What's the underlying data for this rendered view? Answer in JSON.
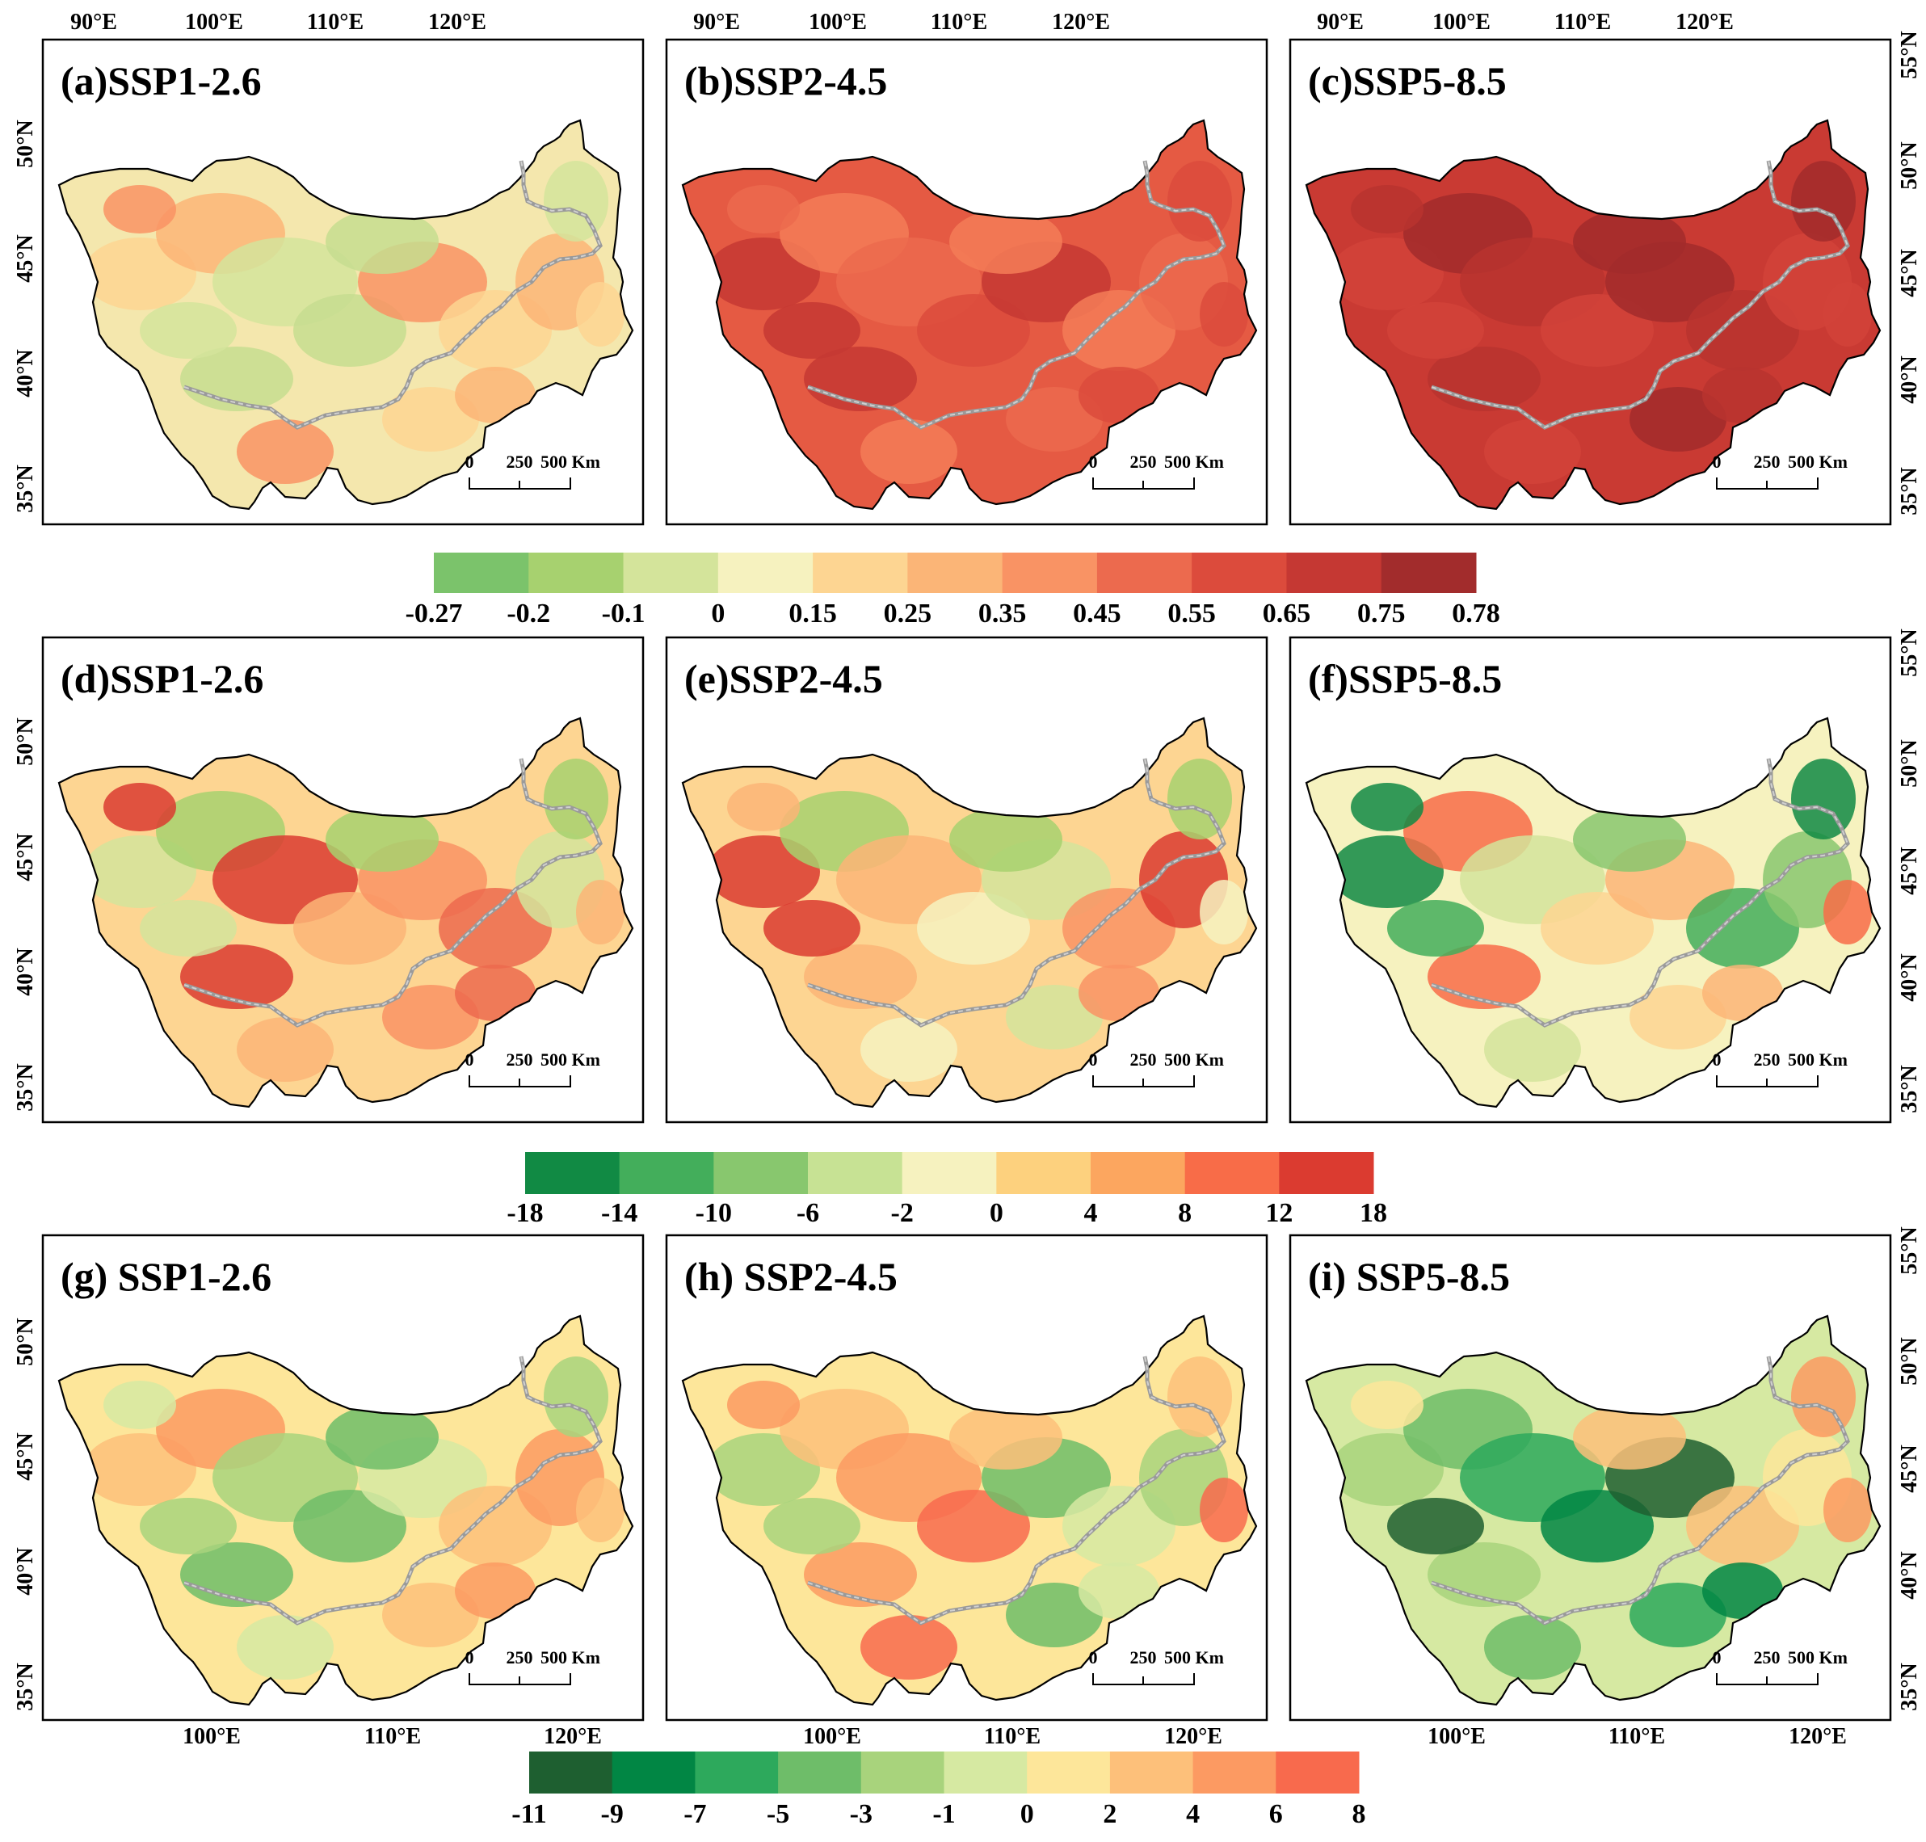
{
  "figure": {
    "panels": [
      {
        "id": "a",
        "title": "(a)SSP1-2.6"
      },
      {
        "id": "b",
        "title": "(b)SSP2-4.5"
      },
      {
        "id": "c",
        "title": "(c)SSP5-8.5"
      },
      {
        "id": "d",
        "title": "(d)SSP1-2.6"
      },
      {
        "id": "e",
        "title": "(e)SSP2-4.5"
      },
      {
        "id": "f",
        "title": "(f)SSP5-8.5"
      },
      {
        "id": "g",
        "title": "(g) SSP1-2.6"
      },
      {
        "id": "h",
        "title": "(h) SSP2-4.5"
      },
      {
        "id": "i",
        "title": "(i) SSP5-8.5"
      }
    ],
    "lon_labels_top": [
      "90°E",
      "100°E",
      "110°E",
      "120°E"
    ],
    "lon_labels_bottom": [
      "100°E",
      "110°E",
      "120°E"
    ],
    "lat_labels": [
      "55°N",
      "50°N",
      "45°N",
      "40°N",
      "35°N"
    ],
    "scale_bar": {
      "labels": [
        "0",
        "250",
        "500 Km"
      ]
    },
    "colorbars": [
      {
        "id": "row1",
        "labels": [
          "-0.27",
          "-0.2",
          "-0.1",
          "0",
          "0.15",
          "0.25",
          "0.35",
          "0.45",
          "0.55",
          "0.65",
          "0.75",
          "0.78"
        ],
        "colors": [
          "#7bc36b",
          "#a7d16f",
          "#d4e49b",
          "#f6f2bf",
          "#fdd592",
          "#fbb577",
          "#f99364",
          "#ec6a4e",
          "#dc4b3c",
          "#c53833",
          "#a22c2c"
        ]
      },
      {
        "id": "row2",
        "labels": [
          "-18",
          "-14",
          "-10",
          "-6",
          "-2",
          "0",
          "4",
          "8",
          "12",
          "18"
        ],
        "colors": [
          "#118a44",
          "#43ae5b",
          "#88c76e",
          "#c7e294",
          "#f6f2bf",
          "#fdd17e",
          "#fca65f",
          "#f86c48",
          "#db3b30"
        ]
      },
      {
        "id": "row3",
        "labels": [
          "-11",
          "-9",
          "-7",
          "-5",
          "-3",
          "-1",
          "0",
          "2",
          "4",
          "6",
          "8"
        ],
        "colors": [
          "#1e5f30",
          "#018644",
          "#2da95c",
          "#6ebd69",
          "#a8d37c",
          "#d6e9a2",
          "#fde69a",
          "#fdc07a",
          "#fc9a62",
          "#f86a4d"
        ]
      }
    ],
    "map_colors": {
      "a": {
        "base": "#f4e7ad",
        "blobs": [
          "#fdd592",
          "#fbb577",
          "#d4e49b",
          "#c5dd8f",
          "#f99364"
        ]
      },
      "b": {
        "base": "#e55a43",
        "blobs": [
          "#dc4b3c",
          "#c53833",
          "#f47c57",
          "#ec6a4e"
        ]
      },
      "c": {
        "base": "#c93a33",
        "blobs": [
          "#a22c2c",
          "#b8342f",
          "#d24339"
        ]
      },
      "d": {
        "base": "#fdd592",
        "blobs": [
          "#fbb577",
          "#f99364",
          "#ec6a4e",
          "#d4e49b",
          "#a7d16f",
          "#db3b30"
        ]
      },
      "e": {
        "base": "#fdd592",
        "blobs": [
          "#fbb577",
          "#f6f2bf",
          "#d4e49b",
          "#f99364",
          "#db3b30",
          "#a7d16f"
        ]
      },
      "f": {
        "base": "#f6f2bf",
        "blobs": [
          "#d4e49b",
          "#fdd592",
          "#fbb577",
          "#43ae5b",
          "#88c76e",
          "#118a44",
          "#f86c48"
        ]
      },
      "g": {
        "base": "#fde69a",
        "blobs": [
          "#d6e9a2",
          "#fdc07a",
          "#fc9a62",
          "#a8d37c",
          "#6ebd69"
        ]
      },
      "h": {
        "base": "#fde69a",
        "blobs": [
          "#d6e9a2",
          "#a8d37c",
          "#fdc07a",
          "#fc9a62",
          "#f86a4d",
          "#6ebd69"
        ]
      },
      "i": {
        "base": "#d6e9a2",
        "blobs": [
          "#a8d37c",
          "#6ebd69",
          "#2da95c",
          "#018644",
          "#1e5f30",
          "#fdc07a",
          "#fde69a",
          "#fc9a62"
        ]
      }
    }
  }
}
